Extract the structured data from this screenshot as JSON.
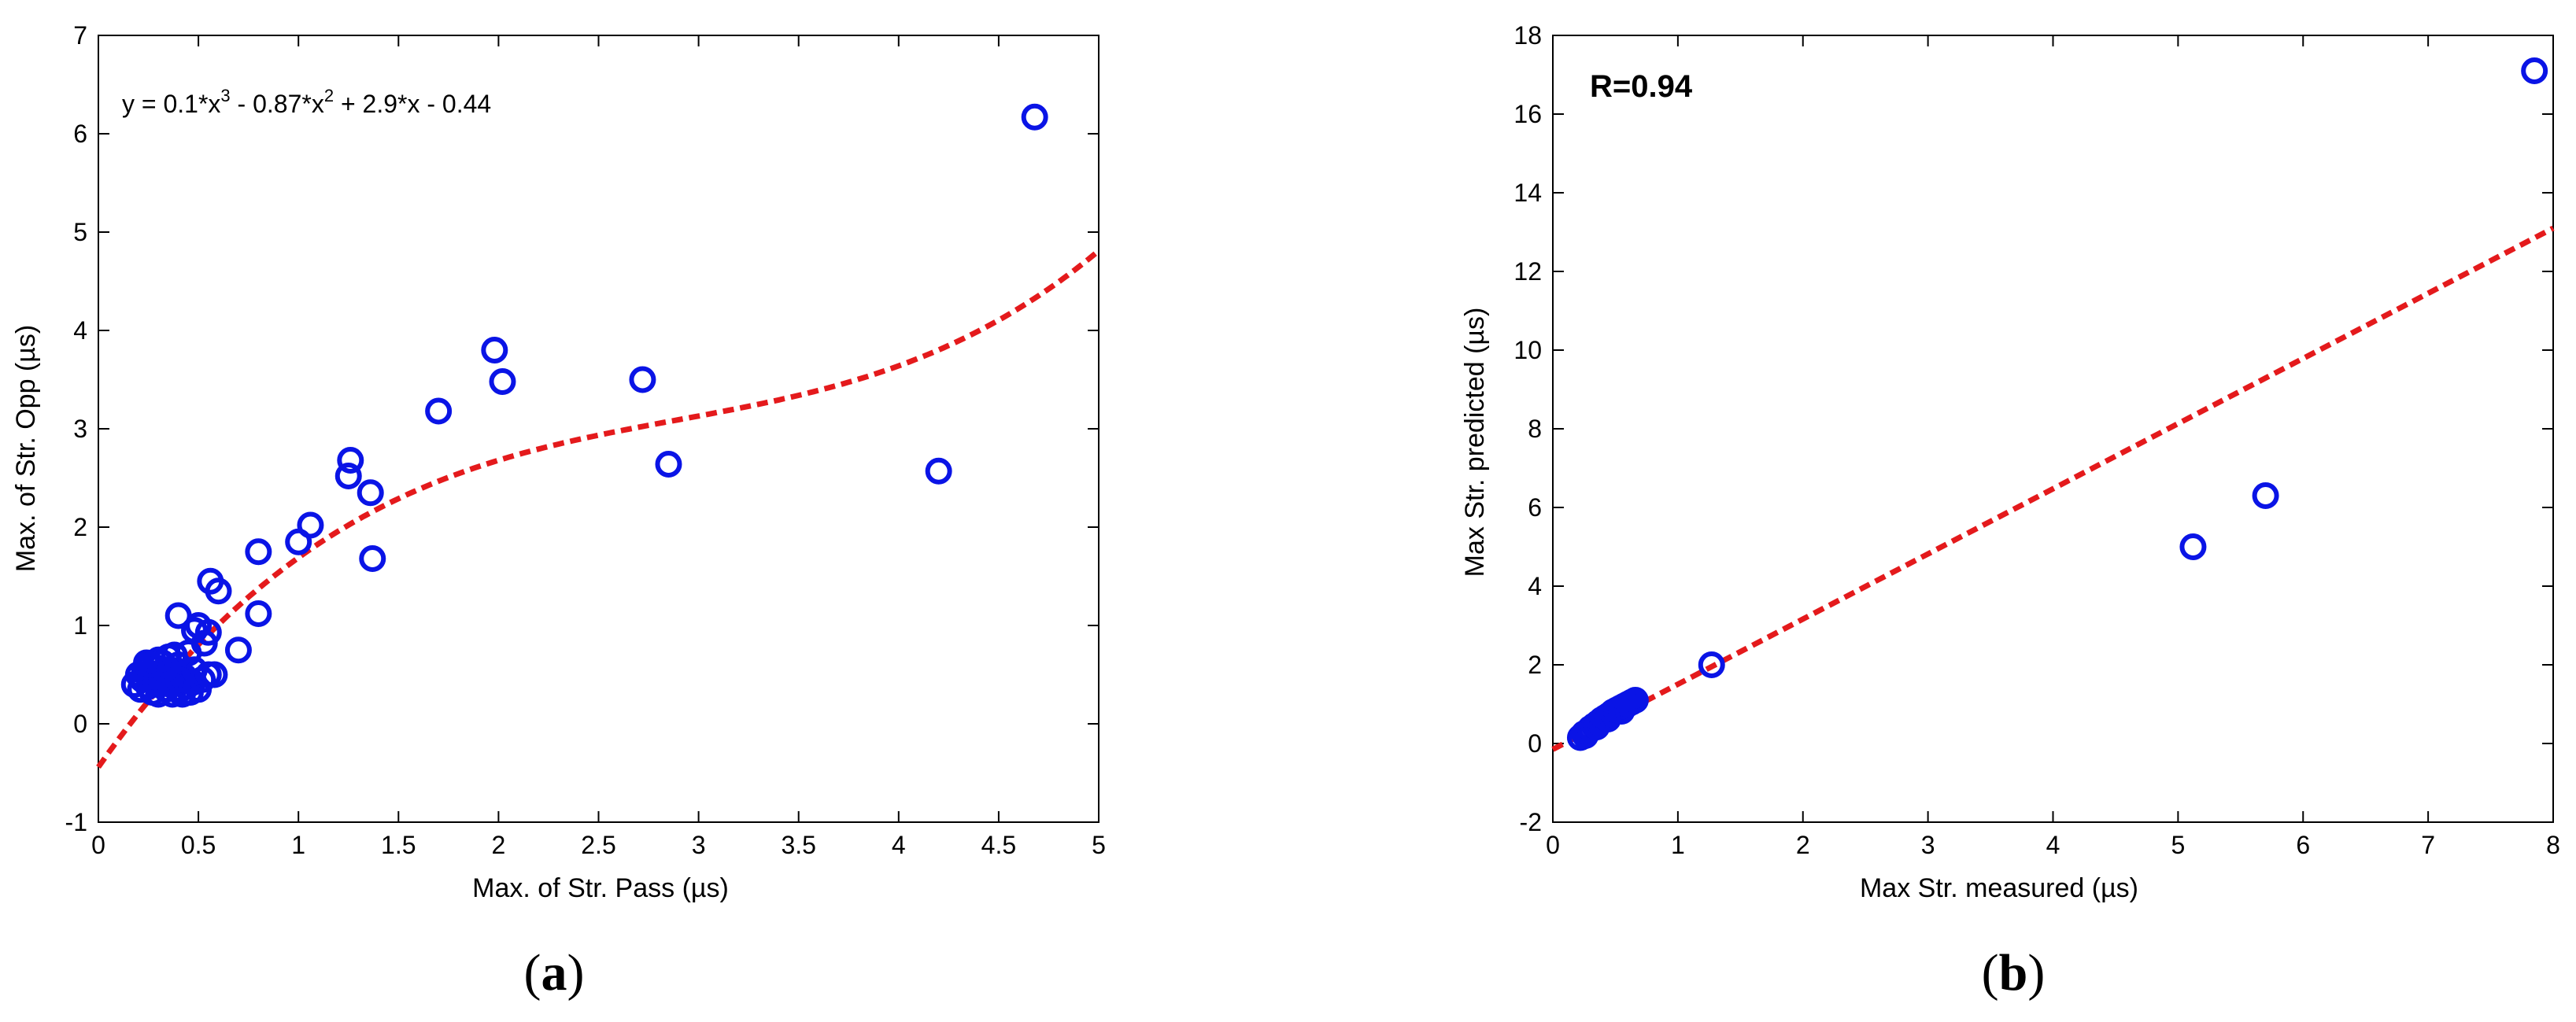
{
  "chart_data": [
    {
      "type": "scatter",
      "panel_label": "(a)",
      "panel_letter": "a",
      "xlabel": "Max. of Str. Pass (µs)",
      "ylabel": "Max. of Str. Opp (µs)",
      "xlim": [
        0,
        5
      ],
      "ylim": [
        -1,
        7
      ],
      "xticks": [
        0,
        0.5,
        1,
        1.5,
        2,
        2.5,
        3,
        3.5,
        4,
        4.5,
        5
      ],
      "xtick_labels": [
        "0",
        "0.5",
        "1",
        "1.5",
        "2",
        "2.5",
        "3",
        "3.5",
        "4",
        "4.5",
        "5"
      ],
      "yticks": [
        -1,
        0,
        1,
        2,
        3,
        4,
        5,
        6,
        7
      ],
      "ytick_labels": [
        "-1",
        "0",
        "1",
        "2",
        "3",
        "4",
        "5",
        "6",
        "7"
      ],
      "grid": false,
      "annotation": {
        "base": "y = 0.1*x",
        "exp1": "3",
        "mid": " - 0.87*x",
        "exp2": "2",
        "tail": " + 2.9*x - 0.44"
      },
      "marker_color": "#0a14e6",
      "fit_color": "#e41a1c",
      "fit": {
        "type": "polynomial",
        "coefficients": [
          0.1,
          -0.87,
          2.9,
          -0.44
        ]
      },
      "points": [
        [
          0.18,
          0.4
        ],
        [
          0.2,
          0.5
        ],
        [
          0.21,
          0.35
        ],
        [
          0.22,
          0.45
        ],
        [
          0.23,
          0.55
        ],
        [
          0.24,
          0.62
        ],
        [
          0.25,
          0.38
        ],
        [
          0.26,
          0.48
        ],
        [
          0.27,
          0.32
        ],
        [
          0.28,
          0.58
        ],
        [
          0.29,
          0.42
        ],
        [
          0.3,
          0.3
        ],
        [
          0.31,
          0.52
        ],
        [
          0.32,
          0.62
        ],
        [
          0.33,
          0.45
        ],
        [
          0.34,
          0.35
        ],
        [
          0.35,
          0.68
        ],
        [
          0.36,
          0.55
        ],
        [
          0.37,
          0.3
        ],
        [
          0.38,
          0.42
        ],
        [
          0.39,
          0.5
        ],
        [
          0.4,
          0.6
        ],
        [
          0.41,
          0.35
        ],
        [
          0.42,
          0.3
        ],
        [
          0.43,
          0.48
        ],
        [
          0.44,
          0.38
        ],
        [
          0.45,
          0.72
        ],
        [
          0.46,
          0.32
        ],
        [
          0.47,
          0.42
        ],
        [
          0.48,
          0.55
        ],
        [
          0.5,
          0.35
        ],
        [
          0.52,
          0.45
        ],
        [
          0.53,
          0.82
        ],
        [
          0.55,
          0.5
        ],
        [
          0.3,
          0.65
        ],
        [
          0.33,
          0.55
        ],
        [
          0.36,
          0.4
        ],
        [
          0.4,
          0.45
        ],
        [
          0.26,
          0.6
        ],
        [
          0.38,
          0.7
        ],
        [
          0.4,
          1.1
        ],
        [
          0.48,
          0.95
        ],
        [
          0.5,
          1.0
        ],
        [
          0.55,
          0.93
        ],
        [
          0.56,
          1.45
        ],
        [
          0.58,
          0.5
        ],
        [
          0.6,
          1.35
        ],
        [
          0.7,
          0.75
        ],
        [
          0.8,
          1.75
        ],
        [
          0.8,
          1.12
        ],
        [
          1.0,
          1.85
        ],
        [
          1.06,
          2.02
        ],
        [
          1.25,
          2.52
        ],
        [
          1.26,
          2.68
        ],
        [
          1.36,
          2.35
        ],
        [
          1.37,
          1.68
        ],
        [
          1.7,
          3.18
        ],
        [
          1.98,
          3.8
        ],
        [
          2.02,
          3.48
        ],
        [
          2.72,
          3.5
        ],
        [
          2.85,
          2.64
        ],
        [
          4.2,
          2.57
        ],
        [
          4.68,
          6.17
        ]
      ]
    },
    {
      "type": "scatter",
      "panel_label": "(b)",
      "panel_letter": "b",
      "xlabel": "Max Str. measured (µs)",
      "ylabel": "Max Str. predicted (µs)",
      "xlim": [
        0,
        8
      ],
      "ylim": [
        -2,
        18
      ],
      "xticks": [
        0,
        1,
        2,
        3,
        4,
        5,
        6,
        7,
        8
      ],
      "xtick_labels": [
        "0",
        "1",
        "2",
        "3",
        "4",
        "5",
        "6",
        "7",
        "8"
      ],
      "yticks": [
        -2,
        0,
        2,
        4,
        6,
        8,
        10,
        12,
        14,
        16,
        18
      ],
      "ytick_labels": [
        "-2",
        "0",
        "2",
        "4",
        "6",
        "8",
        "10",
        "12",
        "14",
        "16",
        "18"
      ],
      "grid": false,
      "annotation": "R=0.94",
      "marker_color": "#0a14e6",
      "fit_color": "#e41a1c",
      "fit": {
        "type": "linear",
        "x": [
          0,
          8
        ],
        "y": [
          -0.15,
          13.1
        ]
      },
      "points": [
        [
          0.22,
          0.15
        ],
        [
          0.25,
          0.25
        ],
        [
          0.28,
          0.3
        ],
        [
          0.3,
          0.38
        ],
        [
          0.33,
          0.45
        ],
        [
          0.36,
          0.52
        ],
        [
          0.39,
          0.6
        ],
        [
          0.42,
          0.66
        ],
        [
          0.45,
          0.72
        ],
        [
          0.48,
          0.8
        ],
        [
          0.51,
          0.85
        ],
        [
          0.54,
          0.9
        ],
        [
          0.57,
          0.95
        ],
        [
          0.6,
          1.0
        ],
        [
          0.63,
          1.05
        ],
        [
          0.66,
          1.1
        ],
        [
          0.26,
          0.2
        ],
        [
          0.35,
          0.42
        ],
        [
          0.44,
          0.62
        ],
        [
          0.55,
          0.82
        ],
        [
          1.27,
          2.0
        ],
        [
          5.12,
          5.0
        ],
        [
          5.7,
          6.3
        ],
        [
          7.85,
          17.1
        ]
      ]
    }
  ]
}
